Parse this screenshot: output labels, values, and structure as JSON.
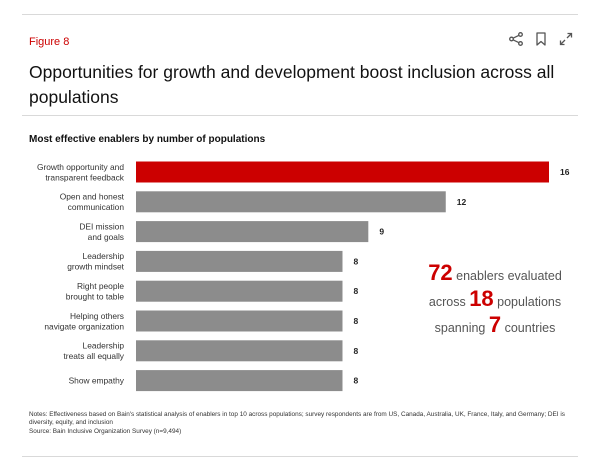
{
  "header": {
    "figure_label": "Figure 8",
    "title": "Opportunities for growth and development boost inclusion across all populations",
    "icons": [
      "share-icon",
      "bookmark-icon",
      "expand-icon"
    ]
  },
  "chart_data": {
    "type": "bar",
    "orientation": "horizontal",
    "title": "Most effective enablers by number of populations",
    "categories": [
      [
        "Growth opportunity and",
        "transparent feedback"
      ],
      [
        "Open and honest",
        "communication"
      ],
      [
        "DEI mission",
        "and goals"
      ],
      [
        "Leadership",
        "growth mindset"
      ],
      [
        "Right people",
        "brought to table"
      ],
      [
        "Helping others",
        "navigate organization"
      ],
      [
        "Leadership",
        "treats all equally"
      ],
      [
        "Show empathy"
      ]
    ],
    "values": [
      16,
      12,
      9,
      8,
      8,
      8,
      8,
      8
    ],
    "highlight_index": 0,
    "colors": {
      "highlight": "#cc0000",
      "default": "#8c8c8c"
    },
    "xlim": [
      0,
      16
    ],
    "annotations": [
      {
        "number": "72",
        "text": "enablers evaluated"
      },
      {
        "prefix": "across",
        "number": "18",
        "text": "populations"
      },
      {
        "prefix": "spanning",
        "number": "7",
        "text": "countries"
      }
    ]
  },
  "notes": {
    "notes": "Notes: Effectiveness based on Bain's statistical analysis of enablers in top 10 across populations; survey respondents are from US, Canada, Australia, UK, France, Italy, and Germany; DEI is diversity, equity, and inclusion",
    "source": "Source: Bain Inclusive Organization Survey (n=9,494)"
  },
  "colors": {
    "accent": "#cc0000",
    "bar": "#8c8c8c",
    "text": "#222222"
  }
}
